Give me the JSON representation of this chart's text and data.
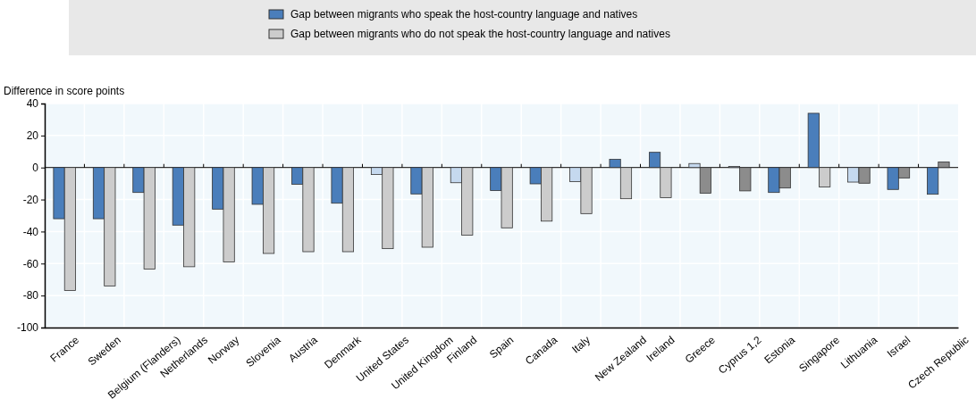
{
  "chart_data": {
    "type": "bar",
    "ylabel": "Difference in score points",
    "categories": [
      "France",
      "Sweden",
      "Belgium (Flanders)",
      "Netherlands",
      "Norway",
      "Slovenia",
      "Austria",
      "Denmark",
      "United States",
      "United Kingdom",
      "Finland",
      "Spain",
      "Canada",
      "Italy",
      "New Zealand",
      "Ireland",
      "Greece",
      "Cyprus 1,2",
      "Estonia",
      "Singapore",
      "Lithuania",
      "Israel",
      "Czech Republic"
    ],
    "series": [
      {
        "name": "Gap between migrants who speak the host-country language and natives",
        "color": "#4a7ebb",
        "colors": [
          "#4a7ebb",
          "#4a7ebb",
          "#4a7ebb",
          "#4a7ebb",
          "#4a7ebb",
          "#4a7ebb",
          "#4a7ebb",
          "#4a7ebb",
          "#c5d9ef",
          "#4a7ebb",
          "#c5d9ef",
          "#4a7ebb",
          "#4a7ebb",
          "#c5d9ef",
          "#4a7ebb",
          "#4a7ebb",
          "#c5d9ef",
          "#c5d9ef",
          "#4a7ebb",
          "#4a7ebb",
          "#c5d9ef",
          "#4a7ebb",
          "#4a7ebb"
        ],
        "values": [
          -32,
          -32,
          -15.6,
          -36,
          -26,
          -23,
          -10.5,
          -22.3,
          -4.4,
          -16.5,
          -9.5,
          -14.4,
          -10.2,
          -8.8,
          5.1,
          9.5,
          2.5,
          0.7,
          -15.6,
          33.9,
          -9.1,
          -13.7,
          -16.7
        ]
      },
      {
        "name": "Gap between migrants who do not speak the host-country language and natives",
        "color": "#cccccc",
        "colors": [
          "#cccccc",
          "#cccccc",
          "#cccccc",
          "#cccccc",
          "#cccccc",
          "#cccccc",
          "#cccccc",
          "#cccccc",
          "#cccccc",
          "#cccccc",
          "#cccccc",
          "#cccccc",
          "#cccccc",
          "#cccccc",
          "#cccccc",
          "#cccccc",
          "#8c8c8c",
          "#8c8c8c",
          "#8c8c8c",
          "#cccccc",
          "#8c8c8c",
          "#8c8c8c",
          "#8c8c8c"
        ],
        "values": [
          -76.8,
          -74,
          -63.5,
          -62,
          -59,
          -53.7,
          -52.6,
          -52.6,
          -50.7,
          -49.8,
          -42.3,
          -37.7,
          -33.5,
          -28.8,
          -19.5,
          -18.8,
          -16,
          -14.6,
          -12.8,
          -12.1,
          -9.8,
          -6.5,
          3.5
        ]
      }
    ],
    "ylim": [
      -100,
      40
    ],
    "yticks": [
      -100,
      -80,
      -60,
      -40,
      -20,
      0,
      20,
      40
    ],
    "grid": true,
    "legend": "top"
  }
}
